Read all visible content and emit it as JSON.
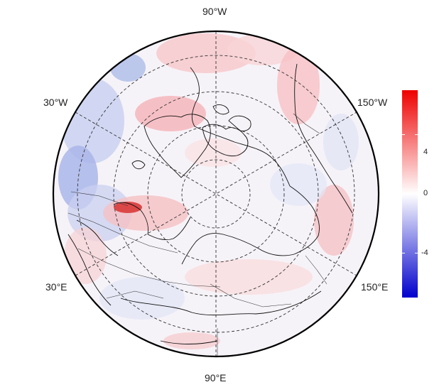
{
  "map": {
    "projection": "north-polar-stereographic",
    "longitude_labels": [
      {
        "id": "lon-90w",
        "text": "90°W"
      },
      {
        "id": "lon-30w",
        "text": "30°W"
      },
      {
        "id": "lon-150w",
        "text": "150°W"
      },
      {
        "id": "lon-30e",
        "text": "30°E"
      },
      {
        "id": "lon-150e",
        "text": "150°E"
      },
      {
        "id": "lon-90e",
        "text": "90°E"
      }
    ],
    "graticule": "dashed",
    "coastlines": true,
    "borders": true
  },
  "colorbar": {
    "ticks": [
      "4",
      "0",
      "-4"
    ],
    "tick_values": [
      4,
      0,
      -4
    ],
    "range": [
      -7,
      7
    ],
    "colors": {
      "low": "#0000cc",
      "mid": "#ffffff",
      "high": "#ee0000"
    }
  }
}
